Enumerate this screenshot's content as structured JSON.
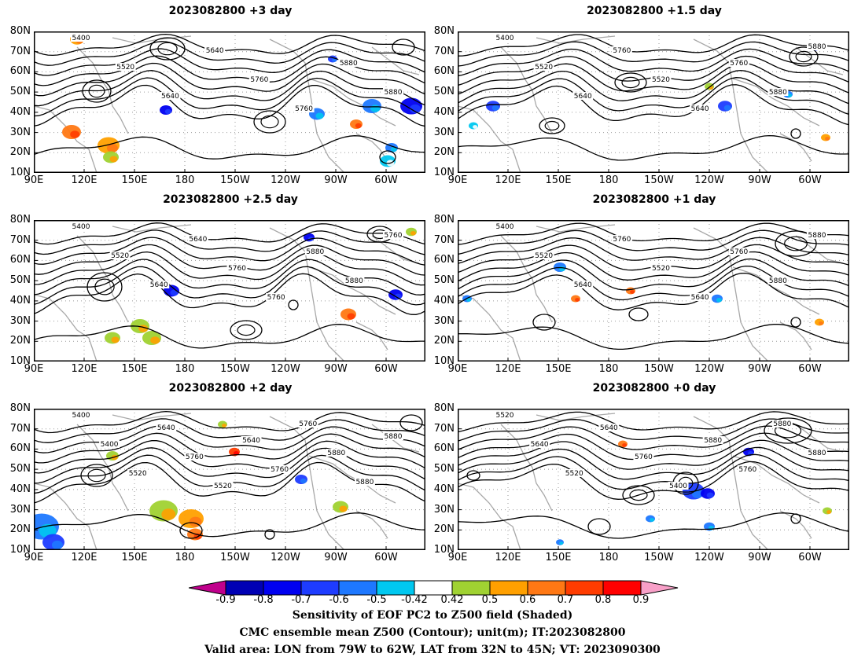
{
  "panels": [
    {
      "title": "2023082800  +3 day",
      "contour_labels": [
        "5400",
        "5520",
        "5640",
        "5640",
        "5760",
        "5760",
        "5880",
        "5880"
      ]
    },
    {
      "title": "2023082800  +1.5 day",
      "contour_labels": [
        "5400",
        "5520",
        "5640",
        "5760",
        "5520",
        "5640",
        "5760",
        "5880",
        "5880"
      ]
    },
    {
      "title": "2023082800  +2.5 day",
      "contour_labels": [
        "5400",
        "5520",
        "5640",
        "5640",
        "5760",
        "5760",
        "5880",
        "5880",
        "5760"
      ]
    },
    {
      "title": "2023082800  +1 day",
      "contour_labels": [
        "5400",
        "5520",
        "5640",
        "5760",
        "5520",
        "5640",
        "5760",
        "5880",
        "5880"
      ]
    },
    {
      "title": "2023082800  +2 day",
      "contour_labels": [
        "5400",
        "5400",
        "5520",
        "5640",
        "5760",
        "5520",
        "5640",
        "5760",
        "5760",
        "5880",
        "5880",
        "5880"
      ]
    },
    {
      "title": "2023082800  +0 day",
      "contour_labels": [
        "5520",
        "5640",
        "5520",
        "5640",
        "5760",
        "5400",
        "5880",
        "5760",
        "5880",
        "5880"
      ]
    }
  ],
  "lat_labels": [
    "80N",
    "70N",
    "60N",
    "50N",
    "40N",
    "30N",
    "20N",
    "10N"
  ],
  "lon_labels": [
    "90E",
    "120E",
    "150E",
    "180",
    "150W",
    "120W",
    "90W",
    "60W"
  ],
  "colorbar": {
    "ticks": [
      "-0.9",
      "-0.8",
      "-0.7",
      "-0.6",
      "-0.5",
      "-0.42",
      "0.42",
      "0.5",
      "0.6",
      "0.7",
      "0.8",
      "0.9"
    ],
    "colors": [
      "#c0008c",
      "#0000b4",
      "#0000f0",
      "#1e3cff",
      "#1e78ff",
      "#00c8f0",
      "#ffffff",
      "#a0d232",
      "#ffa000",
      "#ff7814",
      "#ff3c00",
      "#ff0000",
      "#f8a0c8"
    ]
  },
  "caption": {
    "line1": "Sensitivity of EOF PC2 to Z500 field (Shaded)",
    "line2": "CMC ensemble mean Z500 (Contour); unit(m); IT:2023082800",
    "line3": "Valid area: LON from 79W to 62W, LAT from 32N to 45N; VT: 2023090300"
  }
}
